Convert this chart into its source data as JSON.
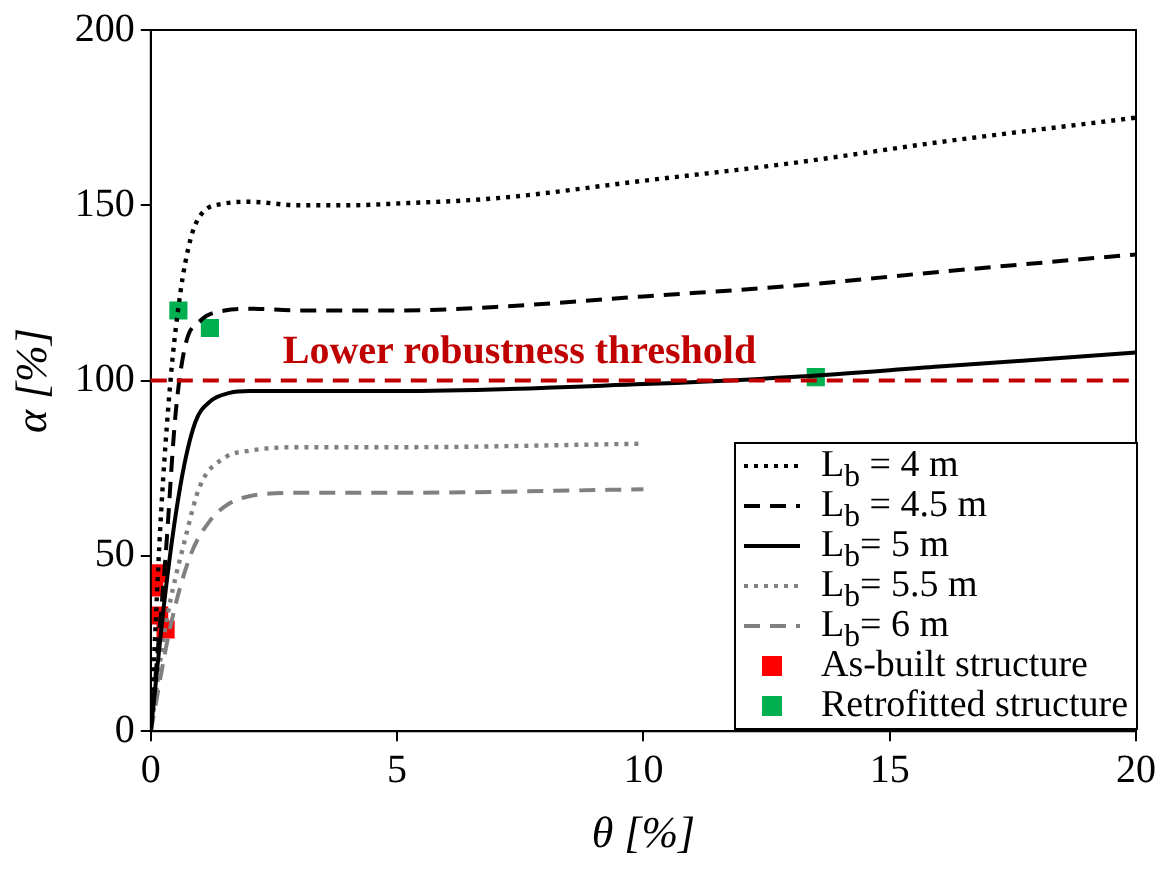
{
  "chart_data": {
    "type": "line",
    "xlabel": "θ [%]",
    "ylabel": "α [%]",
    "xlim": [
      0,
      20
    ],
    "xticks": [
      0,
      5,
      10,
      15,
      20
    ],
    "ylim": [
      0,
      200
    ],
    "yticks": [
      0,
      50,
      100,
      150,
      200
    ],
    "grid": false,
    "legend": "bottom right",
    "marker": "none",
    "series": [
      {
        "name": "L$_{b}$ = 4 m",
        "color": "#000000",
        "line_style": "dotted",
        "x": [
          0,
          0.2,
          0.4,
          0.6,
          0.8,
          1,
          1.5,
          2,
          3,
          4,
          5,
          7,
          10,
          13,
          16,
          20
        ],
        "values": [
          0,
          60,
          100,
          125,
          140,
          147,
          150.5,
          151,
          150,
          150,
          150.5,
          152,
          157,
          162,
          168,
          175
        ]
      },
      {
        "name": "L$_{b}$ = 4.5 m",
        "color": "#000000",
        "line_style": "dashed",
        "x": [
          0,
          0.3,
          0.5,
          0.7,
          1,
          1.5,
          2,
          3,
          5,
          7,
          10,
          13,
          16,
          20
        ],
        "values": [
          0,
          50,
          90,
          110,
          117,
          120,
          120.5,
          120,
          120,
          121,
          124,
          127,
          131,
          136
        ]
      },
      {
        "name": "L$_{b}$= 5 m",
        "color": "#000000",
        "line_style": "solid",
        "x": [
          0,
          0.3,
          0.6,
          0.9,
          1.2,
          1.6,
          2,
          5,
          10,
          13,
          16,
          20
        ],
        "values": [
          0,
          40,
          70,
          88,
          94,
          96.5,
          97,
          97,
          99,
          101,
          104,
          108
        ]
      },
      {
        "name": "L$_{b}$= 5.5 m",
        "color": "#808080",
        "line_style": "dotted",
        "x": [
          0,
          0.3,
          0.7,
          1,
          1.5,
          2,
          3,
          5,
          10
        ],
        "values": [
          0,
          30,
          55,
          70,
          78,
          80,
          81,
          81,
          82
        ]
      },
      {
        "name": "L$_{b}$= 6 m",
        "color": "#808080",
        "line_style": "dashed",
        "x": [
          0,
          0.4,
          0.8,
          1.2,
          1.6,
          2,
          3,
          5,
          10
        ],
        "values": [
          0,
          30,
          50,
          60,
          65,
          67,
          68,
          68,
          69
        ]
      },
      {
        "name": "As-built structure",
        "type": "scatter",
        "marker": "square",
        "color": "#ff0000",
        "x": [
          0.17,
          0.07,
          0.17,
          0.3
        ],
        "values": [
          45,
          41,
          33,
          29
        ]
      },
      {
        "name": "Retrofitted structure",
        "type": "scatter",
        "marker": "square",
        "color": "#00b050",
        "x": [
          0.56,
          1.2,
          13.5
        ],
        "values": [
          120,
          115,
          101
        ]
      }
    ],
    "ref_lines": [
      {
        "axis": "y",
        "value": 100,
        "label": "Lower robustness threshold",
        "color": "#c00000",
        "line_style": "dashed"
      }
    ]
  }
}
